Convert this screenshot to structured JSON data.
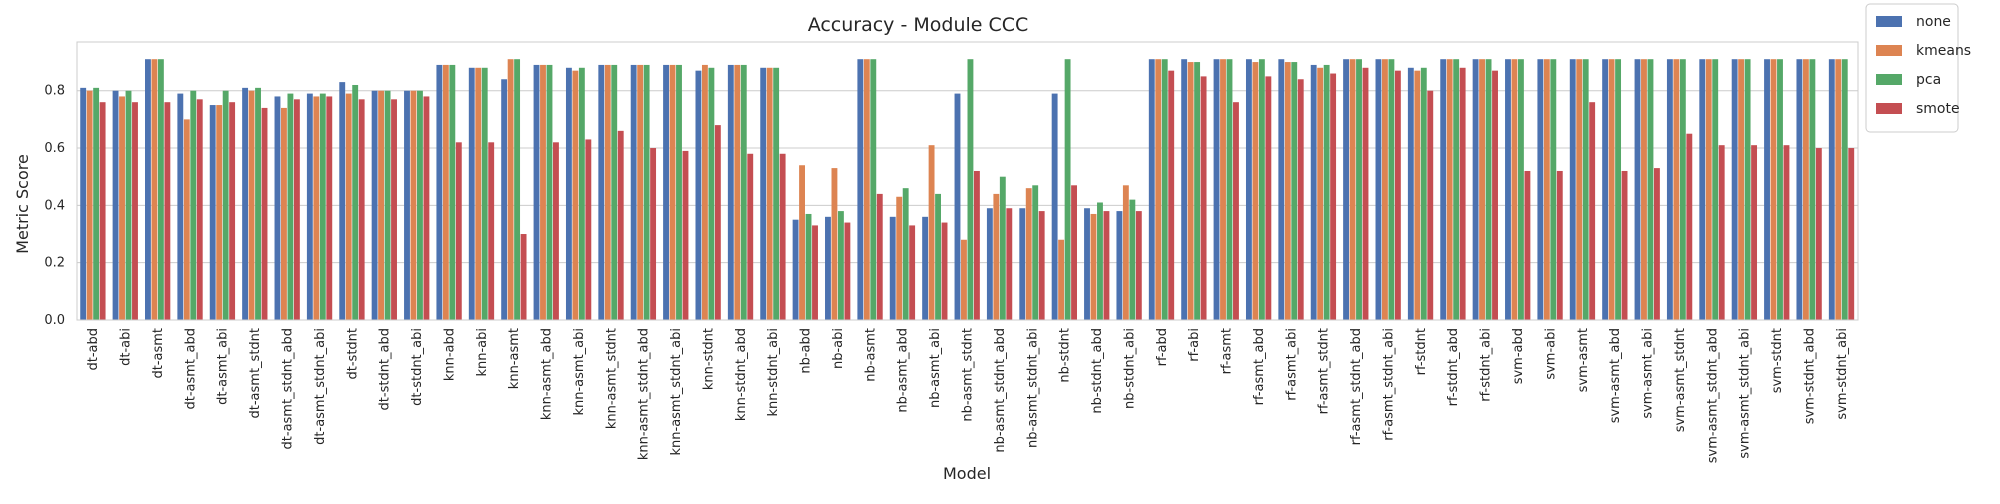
{
  "chart_data": {
    "type": "bar",
    "title": "Accuracy - Module CCC",
    "xlabel": "Model",
    "ylabel": "Metric Score",
    "ylim": [
      0,
      0.97
    ],
    "yticks": [
      "0.0",
      "0.2",
      "0.4",
      "0.6",
      "0.8"
    ],
    "grid": "horizontal",
    "legend_position": "outside-top-right",
    "categories": [
      "dt-abd",
      "dt-abi",
      "dt-asmt",
      "dt-asmt_abd",
      "dt-asmt_abi",
      "dt-asmt_stdnt",
      "dt-asmt_stdnt_abd",
      "dt-asmt_stdnt_abi",
      "dt-stdnt",
      "dt-stdnt_abd",
      "dt-stdnt_abi",
      "knn-abd",
      "knn-abi",
      "knn-asmt",
      "knn-asmt_abd",
      "knn-asmt_abi",
      "knn-asmt_stdnt",
      "knn-asmt_stdnt_abd",
      "knn-asmt_stdnt_abi",
      "knn-stdnt",
      "knn-stdnt_abd",
      "knn-stdnt_abi",
      "nb-abd",
      "nb-abi",
      "nb-asmt",
      "nb-asmt_abd",
      "nb-asmt_abi",
      "nb-asmt_stdnt",
      "nb-asmt_stdnt_abd",
      "nb-asmt_stdnt_abi",
      "nb-stdnt",
      "nb-stdnt_abd",
      "nb-stdnt_abi",
      "rf-abd",
      "rf-abi",
      "rf-asmt",
      "rf-asmt_abd",
      "rf-asmt_abi",
      "rf-asmt_stdnt",
      "rf-asmt_stdnt_abd",
      "rf-asmt_stdnt_abi",
      "rf-stdnt",
      "rf-stdnt_abd",
      "rf-stdnt_abi",
      "svm-abd",
      "svm-abi",
      "svm-asmt",
      "svm-asmt_abd",
      "svm-asmt_abi",
      "svm-asmt_stdnt",
      "svm-asmt_stdnt_abd",
      "svm-asmt_stdnt_abi",
      "svm-stdnt",
      "svm-stdnt_abd",
      "svm-stdnt_abi"
    ],
    "series": [
      {
        "name": "none",
        "color": "#4c72b0",
        "values": [
          0.81,
          0.8,
          0.91,
          0.79,
          0.75,
          0.81,
          0.78,
          0.79,
          0.83,
          0.8,
          0.8,
          0.89,
          0.88,
          0.84,
          0.89,
          0.88,
          0.89,
          0.89,
          0.89,
          0.87,
          0.89,
          0.88,
          0.35,
          0.36,
          0.91,
          0.36,
          0.36,
          0.79,
          0.39,
          0.39,
          0.79,
          0.39,
          0.38,
          0.91,
          0.91,
          0.91,
          0.91,
          0.91,
          0.89,
          0.91,
          0.91,
          0.88,
          0.91,
          0.91,
          0.91,
          0.91,
          0.91,
          0.91,
          0.91,
          0.91,
          0.91,
          0.91,
          0.91,
          0.91,
          0.91
        ]
      },
      {
        "name": "kmeans",
        "color": "#dd8452",
        "values": [
          0.8,
          0.78,
          0.91,
          0.7,
          0.75,
          0.8,
          0.74,
          0.78,
          0.79,
          0.8,
          0.8,
          0.89,
          0.88,
          0.91,
          0.89,
          0.87,
          0.89,
          0.89,
          0.89,
          0.89,
          0.89,
          0.88,
          0.54,
          0.53,
          0.91,
          0.43,
          0.61,
          0.28,
          0.44,
          0.46,
          0.28,
          0.37,
          0.47,
          0.91,
          0.9,
          0.91,
          0.9,
          0.9,
          0.88,
          0.91,
          0.91,
          0.87,
          0.91,
          0.91,
          0.91,
          0.91,
          0.91,
          0.91,
          0.91,
          0.91,
          0.91,
          0.91,
          0.91,
          0.91,
          0.91
        ]
      },
      {
        "name": "pca",
        "color": "#55a868",
        "values": [
          0.81,
          0.8,
          0.91,
          0.8,
          0.8,
          0.81,
          0.79,
          0.79,
          0.82,
          0.8,
          0.8,
          0.89,
          0.88,
          0.91,
          0.89,
          0.88,
          0.89,
          0.89,
          0.89,
          0.88,
          0.89,
          0.88,
          0.37,
          0.38,
          0.91,
          0.46,
          0.44,
          0.91,
          0.5,
          0.47,
          0.91,
          0.41,
          0.42,
          0.91,
          0.9,
          0.91,
          0.91,
          0.9,
          0.89,
          0.91,
          0.91,
          0.88,
          0.91,
          0.91,
          0.91,
          0.91,
          0.91,
          0.91,
          0.91,
          0.91,
          0.91,
          0.91,
          0.91,
          0.91,
          0.91
        ]
      },
      {
        "name": "smote",
        "color": "#c44e52",
        "values": [
          0.76,
          0.76,
          0.76,
          0.77,
          0.76,
          0.74,
          0.77,
          0.78,
          0.77,
          0.77,
          0.78,
          0.62,
          0.62,
          0.3,
          0.62,
          0.63,
          0.66,
          0.6,
          0.59,
          0.68,
          0.58,
          0.58,
          0.33,
          0.34,
          0.44,
          0.33,
          0.34,
          0.52,
          0.39,
          0.38,
          0.47,
          0.38,
          0.38,
          0.87,
          0.85,
          0.76,
          0.85,
          0.84,
          0.86,
          0.88,
          0.87,
          0.8,
          0.88,
          0.87,
          0.52,
          0.52,
          0.76,
          0.52,
          0.53,
          0.65,
          0.61,
          0.61,
          0.61,
          0.6,
          0.6
        ]
      }
    ]
  }
}
